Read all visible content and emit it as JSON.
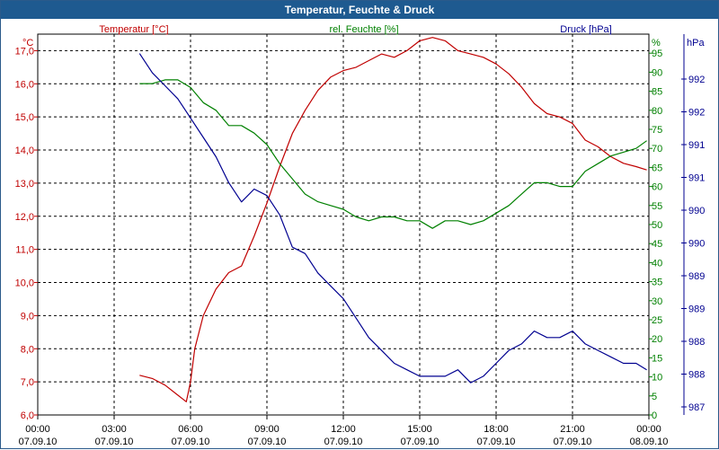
{
  "window": {
    "title": "Temperatur, Feuchte & Druck"
  },
  "colors": {
    "temperature": "#c00000",
    "humidity": "#008000",
    "pressure": "#000090",
    "titlebar": "#1e5a90",
    "grid": "#000000"
  },
  "chart_data": {
    "type": "line",
    "title": "Temperatur, Feuchte & Druck",
    "grid": true,
    "x_ticks": [
      {
        "time": "00:00",
        "date": "07.09.10"
      },
      {
        "time": "03:00",
        "date": "07.09.10"
      },
      {
        "time": "06:00",
        "date": "07.09.10"
      },
      {
        "time": "09:00",
        "date": "07.09.10"
      },
      {
        "time": "12:00",
        "date": "07.09.10"
      },
      {
        "time": "15:00",
        "date": "07.09.10"
      },
      {
        "time": "18:00",
        "date": "07.09.10"
      },
      {
        "time": "21:00",
        "date": "07.09.10"
      },
      {
        "time": "00:00",
        "date": "08.09.10"
      }
    ],
    "xlim": [
      "07.09.10 00:00",
      "08.09.10 00:00"
    ],
    "axes": {
      "temperature": {
        "label": "Temperatur [°C]",
        "unit": "°C",
        "ylim": [
          6.0,
          17.5
        ],
        "ticks": [
          "6,0",
          "7,0",
          "8,0",
          "9,0",
          "10,0",
          "11,0",
          "12,0",
          "13,0",
          "14,0",
          "15,0",
          "16,0",
          "17,0"
        ]
      },
      "humidity": {
        "label": "rel. Feuchte [%]",
        "unit": "%",
        "ylim": [
          0,
          100
        ],
        "ticks": [
          "0",
          "5",
          "10",
          "15",
          "20",
          "25",
          "30",
          "35",
          "40",
          "45",
          "50",
          "55",
          "60",
          "65",
          "70",
          "75",
          "80",
          "85",
          "90",
          "95"
        ]
      },
      "pressure": {
        "label": "Druck [hPa]",
        "unit": "hPa",
        "ylim": [
          986.8,
          992.7
        ],
        "tick_labels": [
          "987",
          "988",
          "988",
          "989",
          "989",
          "990",
          "990",
          "991",
          "991",
          "992",
          "992"
        ]
      }
    },
    "series": [
      {
        "name": "Temperatur [°C]",
        "axis": "temperature",
        "x": [
          "07.09.10 04:00",
          "07.09.10 04:30",
          "07.09.10 05:00",
          "07.09.10 05:30",
          "07.09.10 05:50",
          "07.09.10 06:00",
          "07.09.10 06:10",
          "07.09.10 06:30",
          "07.09.10 07:00",
          "07.09.10 07:30",
          "07.09.10 08:00",
          "07.09.10 08:30",
          "07.09.10 09:00",
          "07.09.10 09:30",
          "07.09.10 10:00",
          "07.09.10 10:30",
          "07.09.10 11:00",
          "07.09.10 11:30",
          "07.09.10 12:00",
          "07.09.10 12:30",
          "07.09.10 13:00",
          "07.09.10 13:30",
          "07.09.10 14:00",
          "07.09.10 14:30",
          "07.09.10 15:00",
          "07.09.10 15:30",
          "07.09.10 16:00",
          "07.09.10 16:30",
          "07.09.10 17:00",
          "07.09.10 17:30",
          "07.09.10 18:00",
          "07.09.10 18:30",
          "07.09.10 19:00",
          "07.09.10 19:30",
          "07.09.10 20:00",
          "07.09.10 20:30",
          "07.09.10 21:00",
          "07.09.10 21:30",
          "07.09.10 22:00",
          "07.09.10 22:30",
          "07.09.10 23:00",
          "07.09.10 23:30",
          "07.09.10 23:55"
        ],
        "values": [
          7.2,
          7.1,
          6.9,
          6.6,
          6.4,
          7.0,
          8.0,
          9.0,
          9.8,
          10.3,
          10.5,
          11.4,
          12.4,
          13.5,
          14.5,
          15.2,
          15.8,
          16.2,
          16.4,
          16.5,
          16.7,
          16.9,
          16.8,
          17.0,
          17.3,
          17.4,
          17.3,
          17.0,
          16.9,
          16.8,
          16.6,
          16.3,
          15.9,
          15.4,
          15.1,
          15.0,
          14.8,
          14.3,
          14.1,
          13.8,
          13.6,
          13.5,
          13.4
        ]
      },
      {
        "name": "rel. Feuchte [%]",
        "axis": "humidity",
        "x": [
          "07.09.10 04:00",
          "07.09.10 04:30",
          "07.09.10 05:00",
          "07.09.10 05:30",
          "07.09.10 06:00",
          "07.09.10 06:30",
          "07.09.10 07:00",
          "07.09.10 07:30",
          "07.09.10 08:00",
          "07.09.10 08:30",
          "07.09.10 09:00",
          "07.09.10 09:30",
          "07.09.10 10:00",
          "07.09.10 10:30",
          "07.09.10 11:00",
          "07.09.10 11:30",
          "07.09.10 12:00",
          "07.09.10 12:30",
          "07.09.10 13:00",
          "07.09.10 13:30",
          "07.09.10 14:00",
          "07.09.10 14:30",
          "07.09.10 15:00",
          "07.09.10 15:30",
          "07.09.10 16:00",
          "07.09.10 16:30",
          "07.09.10 17:00",
          "07.09.10 17:30",
          "07.09.10 18:00",
          "07.09.10 18:30",
          "07.09.10 19:00",
          "07.09.10 19:30",
          "07.09.10 20:00",
          "07.09.10 20:30",
          "07.09.10 21:00",
          "07.09.10 21:30",
          "07.09.10 22:00",
          "07.09.10 22:30",
          "07.09.10 23:00",
          "07.09.10 23:30",
          "07.09.10 23:55"
        ],
        "values": [
          87,
          87,
          88,
          88,
          86,
          82,
          80,
          76,
          76,
          74,
          71,
          66,
          62,
          58,
          56,
          55,
          54,
          52,
          51,
          52,
          52,
          51,
          51,
          49,
          51,
          51,
          50,
          51,
          53,
          55,
          58,
          61,
          61,
          60,
          60,
          64,
          66,
          68,
          69,
          70,
          72
        ]
      },
      {
        "name": "Druck [hPa]",
        "axis": "pressure",
        "x": [
          "07.09.10 04:00",
          "07.09.10 04:30",
          "07.09.10 05:00",
          "07.09.10 05:30",
          "07.09.10 06:00",
          "07.09.10 06:30",
          "07.09.10 07:00",
          "07.09.10 07:30",
          "07.09.10 08:00",
          "07.09.10 08:30",
          "07.09.10 09:00",
          "07.09.10 09:30",
          "07.09.10 10:00",
          "07.09.10 10:30",
          "07.09.10 11:00",
          "07.09.10 11:30",
          "07.09.10 12:00",
          "07.09.10 12:30",
          "07.09.10 13:00",
          "07.09.10 13:30",
          "07.09.10 14:00",
          "07.09.10 14:30",
          "07.09.10 15:00",
          "07.09.10 15:30",
          "07.09.10 16:00",
          "07.09.10 16:30",
          "07.09.10 17:00",
          "07.09.10 17:30",
          "07.09.10 18:00",
          "07.09.10 18:30",
          "07.09.10 19:00",
          "07.09.10 19:30",
          "07.09.10 20:00",
          "07.09.10 20:30",
          "07.09.10 21:00",
          "07.09.10 21:30",
          "07.09.10 22:00",
          "07.09.10 22:30",
          "07.09.10 23:00",
          "07.09.10 23:30",
          "07.09.10 23:55"
        ],
        "values": [
          992.4,
          992.1,
          991.9,
          991.7,
          991.4,
          991.1,
          990.8,
          990.4,
          990.1,
          990.3,
          990.2,
          989.9,
          989.4,
          989.3,
          989.0,
          988.8,
          988.6,
          988.3,
          988.0,
          987.8,
          987.6,
          987.5,
          987.4,
          987.4,
          987.4,
          987.5,
          987.3,
          987.4,
          987.6,
          987.8,
          987.9,
          988.1,
          988.0,
          988.0,
          988.1,
          987.9,
          987.8,
          987.7,
          987.6,
          987.6,
          987.5
        ]
      }
    ]
  }
}
